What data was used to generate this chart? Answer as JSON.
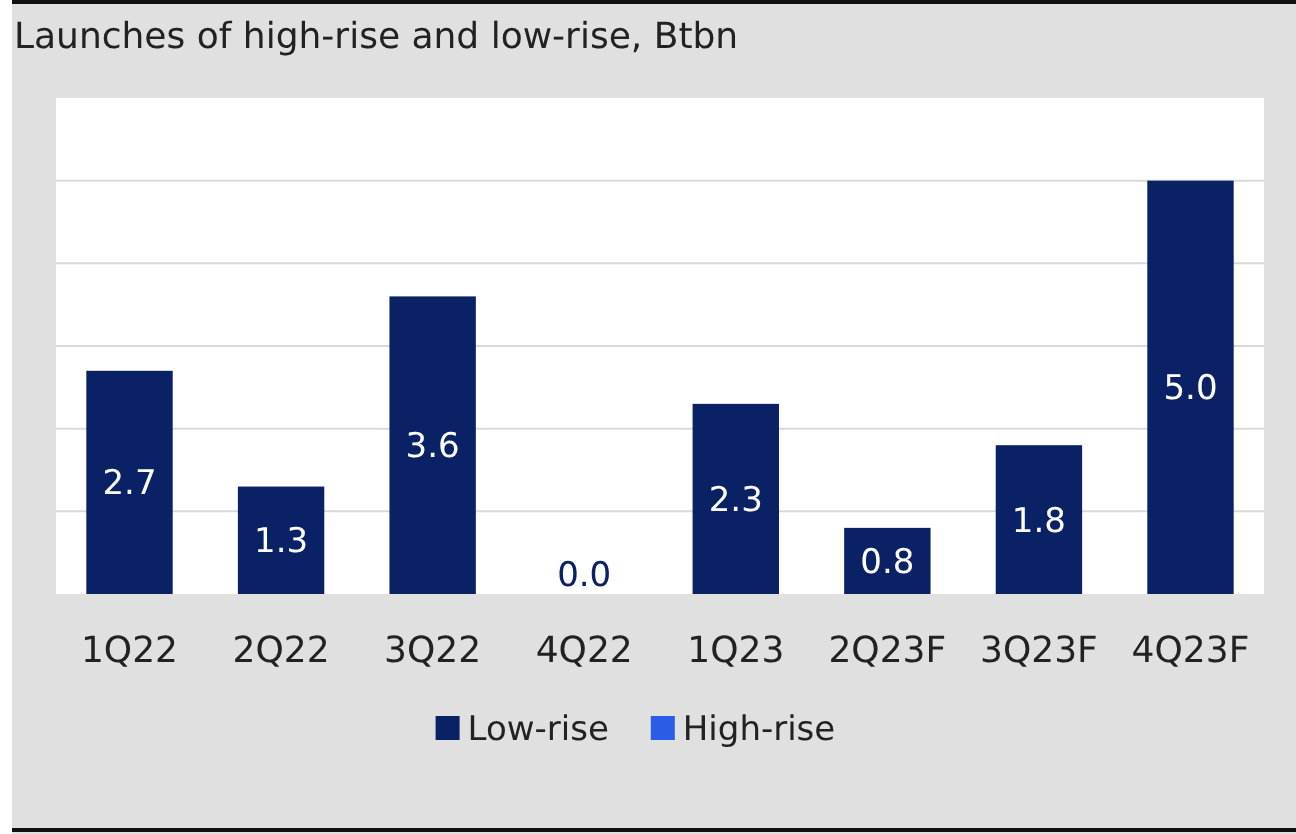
{
  "chart_data": {
    "type": "bar",
    "title": "Launches of high-rise and low-rise, Btbn",
    "categories": [
      "1Q22",
      "2Q22",
      "3Q22",
      "4Q22",
      "1Q23",
      "2Q23F",
      "3Q23F",
      "4Q23F"
    ],
    "ylim": [
      0,
      6
    ],
    "yticks": [
      {
        "value": 1,
        "label": null
      },
      {
        "value": 2,
        "label": null
      },
      {
        "value": 3,
        "label": null
      },
      {
        "value": 4,
        "label": null
      },
      {
        "value": 5,
        "label": null
      }
    ],
    "tick_labels": "x",
    "grid": "y",
    "legend": "bottom",
    "series": [
      {
        "name": "Low-rise",
        "color": "#0b2165",
        "values": [
          2.7,
          1.3,
          3.6,
          0.0,
          2.3,
          0.8,
          1.8,
          5.0
        ],
        "value_labels": [
          "2.7",
          "1.3",
          "3.6",
          "0.0",
          "2.3",
          "0.8",
          "1.8",
          "5.0"
        ]
      },
      {
        "name": "High-rise",
        "color": "#2b5ce6",
        "values": [
          0,
          0,
          0,
          0,
          0,
          0,
          0,
          0
        ]
      }
    ]
  }
}
